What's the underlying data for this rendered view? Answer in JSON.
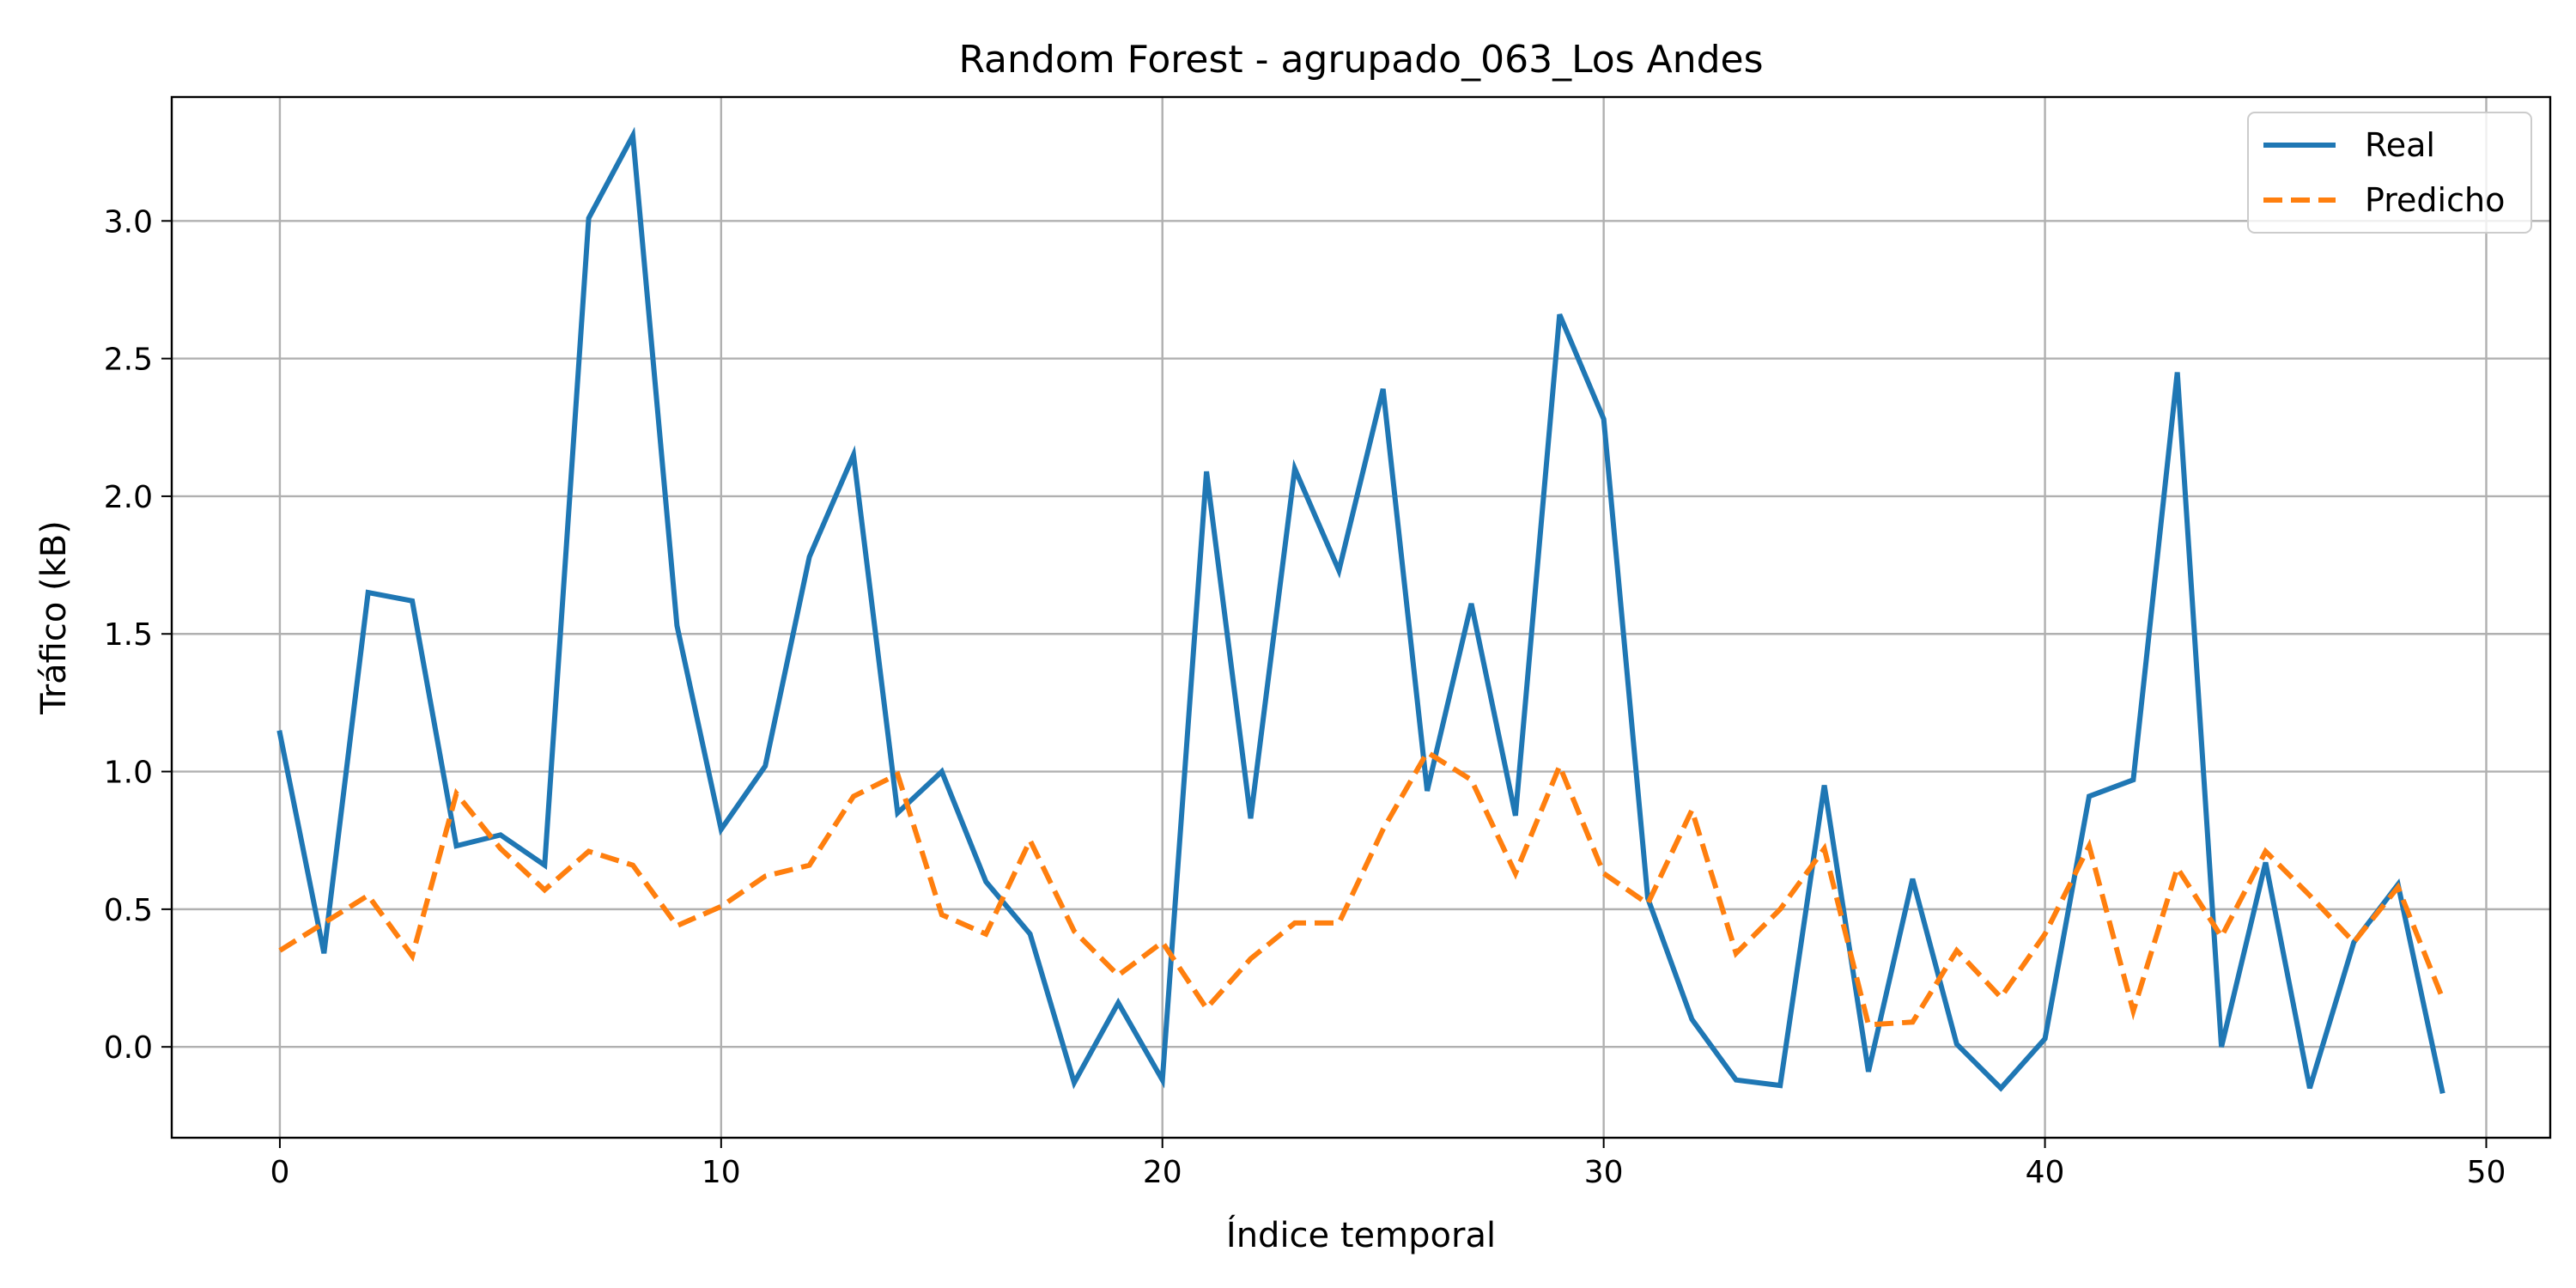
{
  "chart_data": {
    "type": "line",
    "title": "Random Forest - agrupado_063_Los Andes",
    "xlabel": "Índice temporal",
    "ylabel": "Tráfico (kB)",
    "xlim": [
      -2.45,
      51.45
    ],
    "ylim": [
      -0.33,
      3.45
    ],
    "xticks": [
      0,
      10,
      20,
      30,
      40,
      50
    ],
    "yticks": [
      0.0,
      0.5,
      1.0,
      1.5,
      2.0,
      2.5,
      3.0
    ],
    "ytick_labels": [
      "0.0",
      "0.5",
      "1.0",
      "1.5",
      "2.0",
      "2.5",
      "3.0"
    ],
    "grid": true,
    "legend_position": "top-right",
    "x": [
      0,
      1,
      2,
      3,
      4,
      5,
      6,
      7,
      8,
      9,
      10,
      11,
      12,
      13,
      14,
      15,
      16,
      17,
      18,
      19,
      20,
      21,
      22,
      23,
      24,
      25,
      26,
      27,
      28,
      29,
      30,
      31,
      32,
      33,
      34,
      35,
      36,
      37,
      38,
      39,
      40,
      41,
      42,
      43,
      44,
      45,
      46,
      47,
      48,
      49
    ],
    "series": [
      {
        "name": "Real",
        "color": "#1f77b4",
        "style": "solid",
        "values": [
          1.14,
          0.34,
          1.65,
          1.62,
          0.73,
          0.77,
          0.66,
          3.01,
          3.31,
          1.53,
          0.79,
          1.02,
          1.78,
          2.15,
          0.85,
          1.0,
          0.6,
          0.41,
          -0.13,
          0.16,
          -0.12,
          2.09,
          0.83,
          2.1,
          1.73,
          2.39,
          0.93,
          1.61,
          0.84,
          2.66,
          2.28,
          0.54,
          0.1,
          -0.12,
          -0.14,
          0.95,
          -0.09,
          0.61,
          0.01,
          -0.15,
          0.03,
          0.91,
          0.97,
          2.45,
          0.0,
          0.67,
          -0.15,
          0.38,
          0.59,
          -0.16
        ]
      },
      {
        "name": "Predicho",
        "color": "#ff7f0e",
        "style": "dashed",
        "values": [
          0.35,
          0.45,
          0.55,
          0.33,
          0.92,
          0.72,
          0.57,
          0.71,
          0.66,
          0.44,
          0.51,
          0.62,
          0.66,
          0.91,
          0.99,
          0.48,
          0.41,
          0.75,
          0.42,
          0.26,
          0.38,
          0.14,
          0.32,
          0.45,
          0.45,
          0.79,
          1.07,
          0.97,
          0.63,
          1.02,
          0.63,
          0.52,
          0.86,
          0.34,
          0.5,
          0.72,
          0.08,
          0.09,
          0.35,
          0.18,
          0.41,
          0.73,
          0.13,
          0.65,
          0.4,
          0.71,
          0.55,
          0.38,
          0.58,
          0.18
        ]
      }
    ]
  }
}
